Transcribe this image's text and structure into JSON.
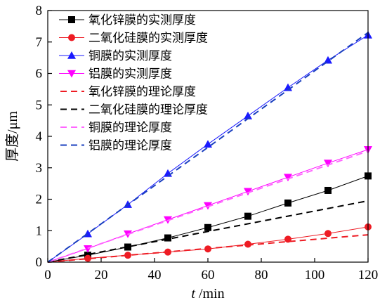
{
  "chart_data": {
    "type": "line",
    "x_axis": {
      "label_italic": "t",
      "label_rest": " /min",
      "min": 0,
      "max": 120,
      "ticks": [
        0,
        20,
        40,
        60,
        80,
        100,
        120
      ]
    },
    "y_axis": {
      "label": "厚度/μm",
      "min": 0,
      "max": 8,
      "ticks": [
        0,
        1,
        2,
        3,
        4,
        5,
        6,
        7,
        8
      ]
    },
    "grid": false,
    "legend_position": "top-left",
    "series": [
      {
        "name": "氧化锌膜的实测厚度",
        "kind": "measured",
        "marker": "square",
        "color": "#000000",
        "x": [
          15,
          30,
          45,
          60,
          75,
          90,
          105,
          120
        ],
        "y": [
          0.22,
          0.48,
          0.77,
          1.1,
          1.46,
          1.88,
          2.28,
          2.74
        ]
      },
      {
        "name": "二氧化硅膜的实测厚度",
        "kind": "measured",
        "marker": "circle",
        "color": "#ee1c24",
        "x": [
          15,
          30,
          45,
          60,
          75,
          90,
          105,
          120
        ],
        "y": [
          0.12,
          0.22,
          0.32,
          0.42,
          0.57,
          0.73,
          0.91,
          1.12
        ]
      },
      {
        "name": "铜膜的实测厚度",
        "kind": "measured",
        "marker": "triangle-up",
        "color": "#1a1aff",
        "x": [
          15,
          30,
          45,
          60,
          75,
          90,
          105,
          120
        ],
        "y": [
          0.9,
          1.83,
          2.82,
          3.75,
          4.65,
          5.55,
          6.42,
          7.22
        ]
      },
      {
        "name": "铝膜的实测厚度",
        "kind": "measured",
        "marker": "triangle-down",
        "color": "#ff00ff",
        "x": [
          15,
          30,
          45,
          60,
          75,
          90,
          105,
          120
        ],
        "y": [
          0.43,
          0.9,
          1.35,
          1.8,
          2.25,
          2.7,
          3.15,
          3.58
        ]
      },
      {
        "name": "氧化锌膜的理论厚度",
        "kind": "theory",
        "color": "#ee1c24",
        "x": [
          0,
          120
        ],
        "y": [
          0,
          0.87
        ]
      },
      {
        "name": "二氧化硅膜的理论厚度",
        "kind": "theory",
        "color": "#000000",
        "x": [
          0,
          120
        ],
        "y": [
          0,
          1.95
        ]
      },
      {
        "name": "铜膜的理论厚度",
        "kind": "theory",
        "color": "#ff66ff",
        "x": [
          0,
          120
        ],
        "y": [
          0,
          3.53
        ]
      },
      {
        "name": "铝膜的理论厚度",
        "kind": "theory",
        "color": "#1a3fbf",
        "x": [
          0,
          120
        ],
        "y": [
          0,
          7.3
        ]
      }
    ]
  }
}
